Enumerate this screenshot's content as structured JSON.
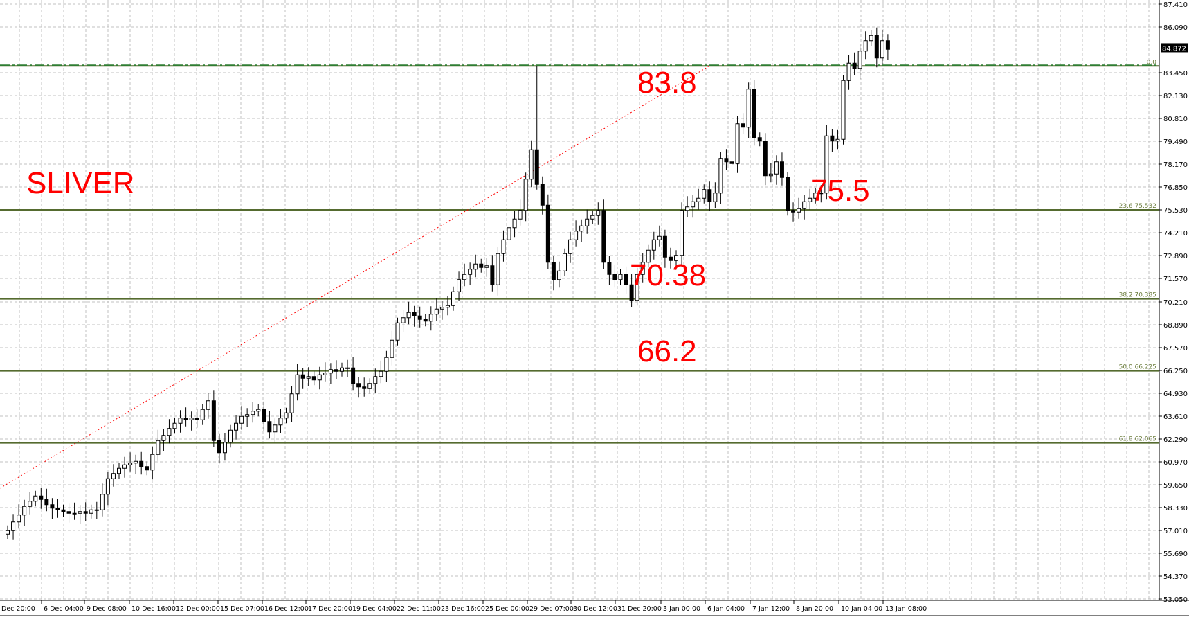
{
  "chart_data": {
    "type": "candlestick",
    "title": "",
    "colors": {
      "bull_body": "#ffffff",
      "bear_body": "#000000",
      "outline": "#000000",
      "grid": "#c0c0c0",
      "fib_line": "#556b2f",
      "fib_text": "#6b7d3c",
      "trendline": "#ff0000",
      "annotation": "#ff0000",
      "price_box": "#000000"
    },
    "y_range": [
      53.05,
      87.41
    ],
    "y_ticks": [
      "87.410",
      "86.090",
      "83.450",
      "82.130",
      "80.810",
      "79.490",
      "78.170",
      "76.850",
      "75.530",
      "74.210",
      "72.890",
      "71.570",
      "70.210",
      "68.890",
      "67.570",
      "66.250",
      "64.930",
      "63.610",
      "62.290",
      "60.970",
      "59.650",
      "58.330",
      "57.010",
      "55.690",
      "54.370",
      "53.050"
    ],
    "current_price": "84.872",
    "x_ticks": [
      "Dec 20:00",
      "6 Dec 04:00",
      "9 Dec 08:00",
      "10 Dec 16:00",
      "12 Dec 00:00",
      "15 Dec 07:00",
      "16 Dec 12:00",
      "17 Dec 20:00",
      "19 Dec 04:00",
      "22 Dec 11:00",
      "23 Dec 16:00",
      "25 Dec 00:00",
      "29 Dec 07:00",
      "30 Dec 12:00",
      "31 Dec 20:00",
      "3 Jan 00:00",
      "6 Jan 04:00",
      "7 Jan 12:00",
      "8 Jan 20:00",
      "10 Jan 04:00",
      "13 Jan 08:00"
    ],
    "closes": [
      57.0,
      57.5,
      57.9,
      58.4,
      58.7,
      59.0,
      58.8,
      58.5,
      58.3,
      58.2,
      58.1,
      58.0,
      58.0,
      58.1,
      58.0,
      58.2,
      58.2,
      59.1,
      60.0,
      60.3,
      60.6,
      60.8,
      60.9,
      61.0,
      60.7,
      60.5,
      61.4,
      62.2,
      62.5,
      62.9,
      63.2,
      63.5,
      63.4,
      63.5,
      63.4,
      64.0,
      64.5,
      62.2,
      61.5,
      62.1,
      62.8,
      63.2,
      63.6,
      63.7,
      63.9,
      64.0,
      63.3,
      62.7,
      63.1,
      63.5,
      63.8,
      64.9,
      66.0,
      65.8,
      65.9,
      65.7,
      66.0,
      66.1,
      66.3,
      66.2,
      66.4,
      66.4,
      65.5,
      65.3,
      65.2,
      65.5,
      65.9,
      66.2,
      67.0,
      68.0,
      69.0,
      69.3,
      69.6,
      69.4,
      69.2,
      69.1,
      69.5,
      69.8,
      69.9,
      70.0,
      70.8,
      71.5,
      71.8,
      72.1,
      72.4,
      72.2,
      72.3,
      71.2,
      73.0,
      73.8,
      74.5,
      75.0,
      75.5,
      77.3,
      79.0,
      77.0,
      75.8,
      72.5,
      71.5,
      72.0,
      73.0,
      73.8,
      74.3,
      74.6,
      75.0,
      75.2,
      75.5,
      72.5,
      71.8,
      71.5,
      71.8,
      71.2,
      70.3,
      71.8,
      72.5,
      73.2,
      73.8,
      74.0,
      72.8,
      72.6,
      72.9,
      75.5,
      75.7,
      76.0,
      76.2,
      76.7,
      76.0,
      76.5,
      78.5,
      78.3,
      78.2,
      80.5,
      80.3,
      82.5,
      79.7,
      79.5,
      77.5,
      77.6,
      78.3,
      77.4,
      75.5,
      75.4,
      75.6,
      76.0,
      76.2,
      76.5,
      76.5,
      79.8,
      79.5,
      79.6,
      83.0,
      84.0,
      83.7,
      84.7,
      85.3,
      85.6,
      84.3,
      85.3,
      84.8
    ],
    "notable_extremes": {
      "high": 83.84,
      "low": 70.0
    },
    "fibonacci_levels": [
      {
        "label": "0.0",
        "price": 83.84
      },
      {
        "label": "23.6 75.532",
        "price": 75.532
      },
      {
        "label": "38.2 70.385",
        "price": 70.385
      },
      {
        "label": "50.0 66.225",
        "price": 66.225
      },
      {
        "label": "61.8 62.065",
        "price": 62.065
      }
    ],
    "trendline": {
      "style": "dotted",
      "from_price": 59.45,
      "to_price": 83.84
    },
    "annotations": [
      {
        "text": "SLIVER"
      },
      {
        "text": "83.8"
      },
      {
        "text": "75.5"
      },
      {
        "text": "70.38"
      },
      {
        "text": "66.2"
      }
    ]
  }
}
